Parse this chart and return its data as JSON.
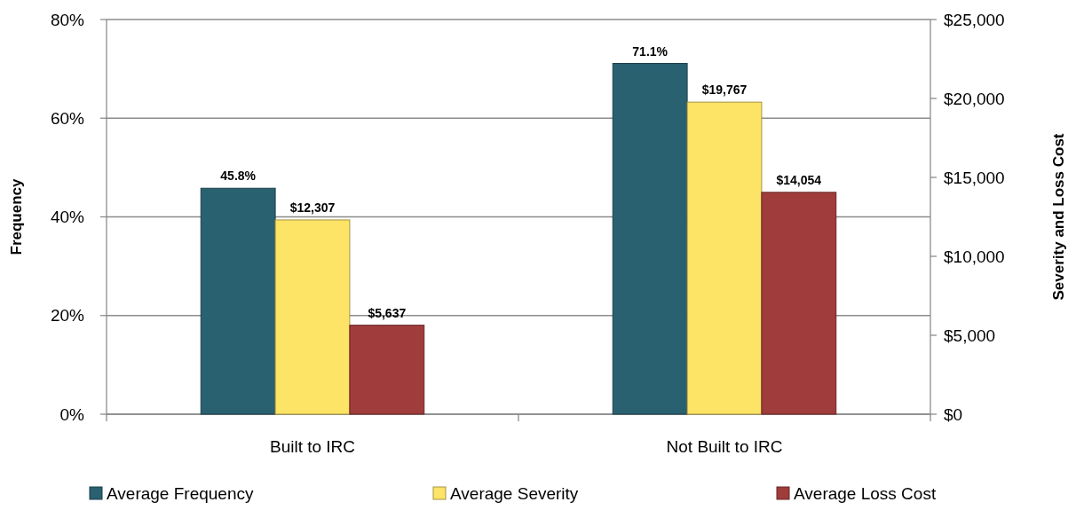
{
  "chart_data": {
    "type": "bar",
    "categories": [
      "Built to IRC",
      "Not Built to IRC"
    ],
    "series": [
      {
        "name": "Average Frequency",
        "color": "#2a6171",
        "values": [
          45.8,
          71.1
        ],
        "axis": "y",
        "value_labels": [
          "45.8%",
          "71.1%"
        ]
      },
      {
        "name": "Average Severity",
        "color": "#fde366",
        "values": [
          12307,
          19767
        ],
        "axis": "y2",
        "value_labels": [
          "$12,307",
          "$19,767"
        ]
      },
      {
        "name": "Average Loss Cost",
        "color": "#a03c3b",
        "values": [
          5637,
          14054
        ],
        "axis": "y2",
        "value_labels": [
          "$5,637",
          "$14,054"
        ]
      }
    ],
    "ylabel": "Frequency",
    "y2label": "Severity and Loss Cost",
    "ylim": [
      0,
      80
    ],
    "yticks": [
      {
        "value": 0,
        "label": "0%"
      },
      {
        "value": 20,
        "label": "20%"
      },
      {
        "value": 40,
        "label": "40%"
      },
      {
        "value": 60,
        "label": "60%"
      },
      {
        "value": 80,
        "label": "80%"
      }
    ],
    "y2lim": [
      0,
      25000
    ],
    "y2ticks": [
      {
        "value": 0,
        "label": "$0"
      },
      {
        "value": 5000,
        "label": "$5,000"
      },
      {
        "value": 10000,
        "label": "$10,000"
      },
      {
        "value": 15000,
        "label": "$15,000"
      },
      {
        "value": 20000,
        "label": "$20,000"
      },
      {
        "value": 25000,
        "label": "$25,000"
      }
    ],
    "grid": "y",
    "legend": "bottom"
  }
}
